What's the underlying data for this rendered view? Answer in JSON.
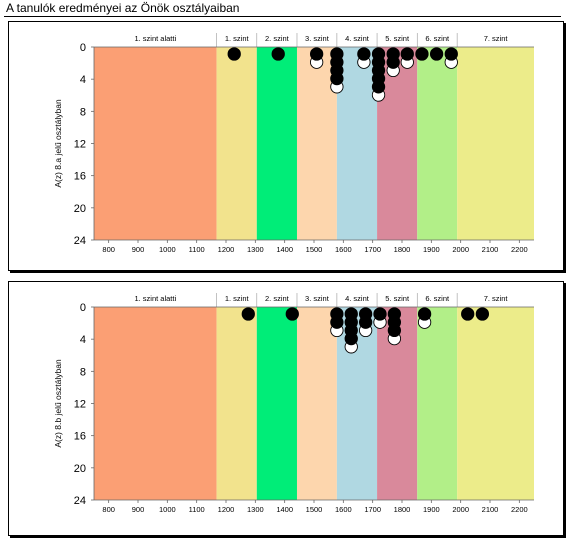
{
  "page": {
    "title": "A tanulók eredményei az Önök osztályaiban"
  },
  "chart_data": [
    {
      "type": "scatter",
      "ylabel": "A(z) 8.a jelű osztályban",
      "xlim": [
        750,
        2250
      ],
      "ylim": [
        0,
        24
      ],
      "y_inverted": true,
      "x_ticks": [
        800,
        900,
        1000,
        1100,
        1200,
        1300,
        1400,
        1500,
        1600,
        1700,
        1800,
        1900,
        2000,
        2100,
        2200
      ],
      "y_ticks": [
        0,
        4,
        8,
        12,
        16,
        20,
        24
      ],
      "bands": [
        {
          "label": "1. szint alatti",
          "from": 750,
          "to": 1168,
          "color": "#fb9f74"
        },
        {
          "label": "1. szint",
          "from": 1168,
          "to": 1305,
          "color": "#f2e38d"
        },
        {
          "label": "2. szint",
          "from": 1305,
          "to": 1442,
          "color": "#00ed78"
        },
        {
          "label": "3. szint",
          "from": 1442,
          "to": 1578,
          "color": "#fdd6ad"
        },
        {
          "label": "4. szint",
          "from": 1578,
          "to": 1715,
          "color": "#b0d8e2"
        },
        {
          "label": "5. szint",
          "from": 1715,
          "to": 1852,
          "color": "#d9899b"
        },
        {
          "label": "6. szint",
          "from": 1852,
          "to": 1988,
          "color": "#b2ef88"
        },
        {
          "label": "7. szint",
          "from": 1988,
          "to": 2250,
          "color": "#ecec8a"
        }
      ],
      "points": [
        {
          "x": 1228,
          "count": 1
        },
        {
          "x": 1378,
          "count": 1
        },
        {
          "x": 1509,
          "count": 2
        },
        {
          "x": 1578,
          "count": 5
        },
        {
          "x": 1670,
          "count": 2
        },
        {
          "x": 1720,
          "count": 6
        },
        {
          "x": 1770,
          "count": 3
        },
        {
          "x": 1818,
          "count": 2
        },
        {
          "x": 1868,
          "count": 1
        },
        {
          "x": 1918,
          "count": 1
        },
        {
          "x": 1968,
          "count": 2
        }
      ]
    },
    {
      "type": "scatter",
      "ylabel": "A(z) 8.b jelű osztályban",
      "xlim": [
        750,
        2250
      ],
      "ylim": [
        0,
        24
      ],
      "y_inverted": true,
      "x_ticks": [
        800,
        900,
        1000,
        1100,
        1200,
        1300,
        1400,
        1500,
        1600,
        1700,
        1800,
        1900,
        2000,
        2100,
        2200
      ],
      "y_ticks": [
        0,
        4,
        8,
        12,
        16,
        20,
        24
      ],
      "bands": [
        {
          "label": "1. szint alatti",
          "from": 750,
          "to": 1168,
          "color": "#fb9f74"
        },
        {
          "label": "1. szint",
          "from": 1168,
          "to": 1305,
          "color": "#f2e38d"
        },
        {
          "label": "2. szint",
          "from": 1305,
          "to": 1442,
          "color": "#00ed78"
        },
        {
          "label": "3. szint",
          "from": 1442,
          "to": 1578,
          "color": "#fdd6ad"
        },
        {
          "label": "4. szint",
          "from": 1578,
          "to": 1715,
          "color": "#b0d8e2"
        },
        {
          "label": "5. szint",
          "from": 1715,
          "to": 1852,
          "color": "#d9899b"
        },
        {
          "label": "6. szint",
          "from": 1852,
          "to": 1988,
          "color": "#b2ef88"
        },
        {
          "label": "7. szint",
          "from": 1988,
          "to": 2250,
          "color": "#ecec8a"
        }
      ],
      "points": [
        {
          "x": 1276,
          "count": 1
        },
        {
          "x": 1426,
          "count": 1
        },
        {
          "x": 1578,
          "count": 3
        },
        {
          "x": 1627,
          "count": 5
        },
        {
          "x": 1676,
          "count": 3
        },
        {
          "x": 1725,
          "count": 2
        },
        {
          "x": 1774,
          "count": 4
        },
        {
          "x": 1877,
          "count": 2
        },
        {
          "x": 2024,
          "count": 1
        },
        {
          "x": 2074,
          "count": 1
        }
      ]
    }
  ]
}
